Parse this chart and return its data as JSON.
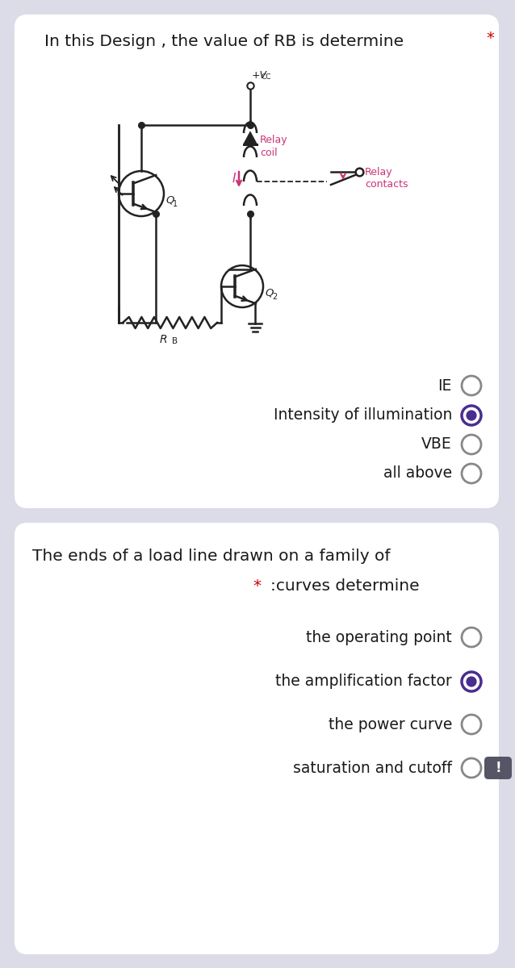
{
  "bg_color": "#dcdce8",
  "card_color": "#ffffff",
  "title1": "In this Design , the value of RB is determine",
  "star_color": "#cc0000",
  "q1_options": [
    "IE",
    "Intensity of illumination",
    "VBE",
    "all above"
  ],
  "q1_selected": 1,
  "title2_line1": "The ends of a load line drawn on a family of",
  "title2_line2": ":curves determine",
  "q2_options": [
    "the operating point",
    "the amplification factor",
    "the power curve",
    "saturation and cutoff"
  ],
  "q2_selected": 1,
  "selected_color": "#4a2d8f",
  "text_color": "#1a1a1a",
  "circuit_color": "#222222",
  "highlight_color": "#cc3377",
  "font_size_title": 14.5,
  "font_size_option": 13.5
}
